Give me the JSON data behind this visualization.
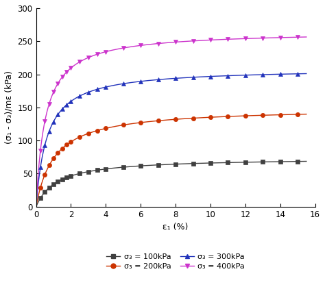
{
  "title": "",
  "xlabel": "ε₁ (%)",
  "ylabel": "(σ₁ - σ₃)/mε (kPa)",
  "xlim": [
    0,
    16
  ],
  "ylim": [
    0,
    300
  ],
  "xticks": [
    0,
    2,
    4,
    6,
    8,
    10,
    12,
    14,
    16
  ],
  "yticks": [
    0,
    50,
    100,
    150,
    200,
    250,
    300
  ],
  "series": [
    {
      "label": "σ₃ = 100kPa",
      "color": "#404040",
      "marker": "s",
      "hyp_a": 0.016,
      "hyp_b": 0.01356
    },
    {
      "label": "σ₃ = 200kPa",
      "color": "#cc3300",
      "marker": "o",
      "hyp_a": 0.007,
      "hyp_b": 0.0067
    },
    {
      "label": "σ₃ = 300kPa",
      "color": "#2233bb",
      "marker": "^",
      "hyp_a": 0.003,
      "hyp_b": 0.00478
    },
    {
      "label": "σ₃ = 400kPa",
      "color": "#cc33cc",
      "marker": "v",
      "hyp_a": 0.002,
      "hyp_b": 0.00377
    }
  ],
  "marker_x_positions": [
    0.25,
    0.5,
    0.75,
    1.0,
    1.25,
    1.5,
    1.75,
    2.0,
    2.5,
    3.0,
    3.5,
    4.0,
    5.0,
    6.0,
    7.0,
    8.0,
    9.0,
    10.0,
    11.0,
    12.0,
    13.0,
    14.0,
    15.0
  ],
  "background_color": "#ffffff"
}
